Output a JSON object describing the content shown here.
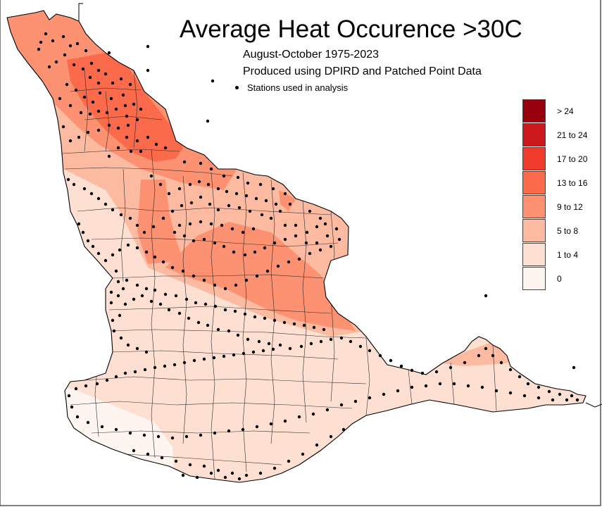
{
  "title": "Average Heat Occurence >30C",
  "subtitle_period": "August-October 1975-2023",
  "subtitle_source": "Produced using DPIRD and Patched Point Data",
  "stations_label": "Stations used in analysis",
  "legend": [
    {
      "label": "> 24",
      "color": "#99000d"
    },
    {
      "label": "21 to 24",
      "color": "#cb181d"
    },
    {
      "label": "17 to 20",
      "color": "#ef3b2c"
    },
    {
      "label": "13 to 16",
      "color": "#fb6a4a"
    },
    {
      "label": "9 to 12",
      "color": "#fc9272"
    },
    {
      "label": "5 to 8",
      "color": "#fcbba1"
    },
    {
      "label": "1 to 4",
      "color": "#fee0d2"
    },
    {
      "label": "0",
      "color": "#fff5f0"
    }
  ]
}
